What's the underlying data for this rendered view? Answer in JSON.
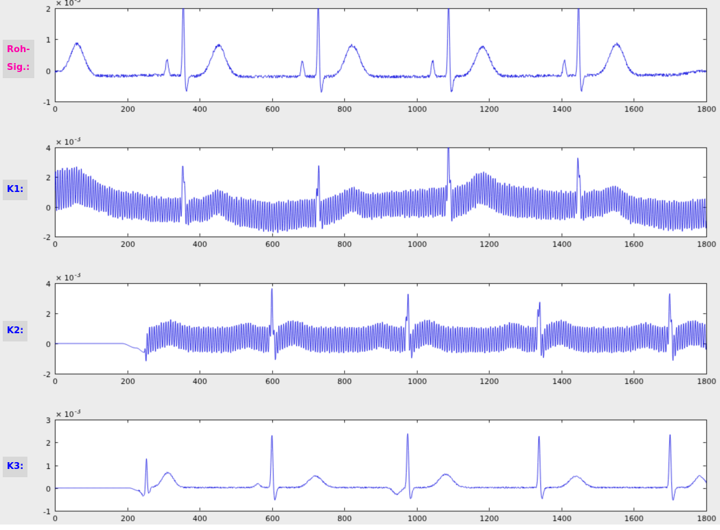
{
  "window": {
    "background": "#ececec",
    "bottom_strip_color": "#ffffff"
  },
  "figure": {
    "line_color": "#0000dd",
    "axes_background": "#ffffff",
    "axes_border": "#1a1a1a",
    "tick_label_color": "#000000",
    "label_box_background": "#d8d8d8"
  },
  "side_labels": [
    {
      "id": "roh-sig",
      "lines": [
        "Roh-",
        "Sig.:"
      ],
      "color": "#ff00aa",
      "background": "#d8d8d8"
    },
    {
      "id": "k1",
      "lines": [
        "K1:"
      ],
      "color": "#0000ff",
      "background": "#d8d8d8"
    },
    {
      "id": "k2",
      "lines": [
        "K2:"
      ],
      "color": "#0000ff",
      "background": "#d8d8d8"
    },
    {
      "id": "k3",
      "lines": [
        "K3:"
      ],
      "color": "#0000ff",
      "background": "#d8d8d8"
    }
  ],
  "chart_data": [
    {
      "name": "roh-signal",
      "type": "line",
      "xlim": [
        0,
        1800
      ],
      "ylim_scaled": [
        -1,
        2
      ],
      "unit_multiplier": 0.001,
      "scale_label": {
        "base": "× 10",
        "exponent": "-3"
      },
      "xticks": [
        0,
        200,
        400,
        600,
        800,
        1000,
        1200,
        1400,
        1600,
        1800
      ],
      "yticks": [
        -1,
        0,
        1,
        2
      ],
      "signal_model": {
        "baseline": [
          [
            0,
            -0.05
          ],
          [
            150,
            -0.18
          ],
          [
            300,
            -0.15
          ],
          [
            430,
            -0.2
          ],
          [
            1000,
            -0.2
          ],
          [
            1700,
            -0.15
          ],
          [
            1800,
            -0.02
          ]
        ],
        "noise": 0.05,
        "bumps": [
          {
            "x": 62,
            "h": 0.95,
            "w": 26
          },
          {
            "x": 310,
            "h": 0.5,
            "w": 5
          },
          {
            "x": 452,
            "h": 1.0,
            "w": 28
          },
          {
            "x": 684,
            "h": 0.5,
            "w": 5
          },
          {
            "x": 822,
            "h": 1.0,
            "w": 28
          },
          {
            "x": 1044,
            "h": 0.5,
            "w": 5
          },
          {
            "x": 1182,
            "h": 0.95,
            "w": 28
          },
          {
            "x": 1408,
            "h": 0.5,
            "w": 5
          },
          {
            "x": 1552,
            "h": 1.0,
            "w": 28
          }
        ],
        "spikes": [
          {
            "x": 355,
            "h": 2.5,
            "w": 3.5,
            "u": -0.5
          },
          {
            "x": 728,
            "h": 2.45,
            "w": 3.5,
            "u": -0.5
          },
          {
            "x": 1088,
            "h": 2.5,
            "w": 3.5,
            "u": -0.5
          },
          {
            "x": 1447,
            "h": 2.5,
            "w": 3.5,
            "u": -0.5
          }
        ]
      }
    },
    {
      "name": "k1",
      "type": "line",
      "xlim": [
        0,
        1800
      ],
      "ylim_scaled": [
        -2,
        4
      ],
      "unit_multiplier": 0.001,
      "scale_label": {
        "base": "× 10",
        "exponent": "-3"
      },
      "xticks": [
        0,
        200,
        400,
        600,
        800,
        1000,
        1200,
        1400,
        1600,
        1800
      ],
      "yticks": [
        -2,
        0,
        2,
        4
      ],
      "signal_model": {
        "baseline": [
          [
            0,
            1.1
          ],
          [
            80,
            0.9
          ],
          [
            200,
            0.1
          ],
          [
            300,
            -0.2
          ],
          [
            400,
            -0.25
          ],
          [
            500,
            -0.35
          ],
          [
            600,
            -0.7
          ],
          [
            700,
            -0.45
          ],
          [
            800,
            -0.15
          ],
          [
            950,
            0.2
          ],
          [
            1100,
            0.35
          ],
          [
            1250,
            0.4
          ],
          [
            1400,
            0.1
          ],
          [
            1500,
            0.2
          ],
          [
            1600,
            -0.3
          ],
          [
            1720,
            -0.6
          ],
          [
            1800,
            -0.45
          ]
        ],
        "noise": 0.08,
        "osc": {
          "period": 6.5,
          "amplitude": [
            [
              0,
              1.4
            ],
            [
              150,
              0.95
            ],
            [
              350,
              0.8
            ],
            [
              600,
              1.0
            ],
            [
              900,
              0.85
            ],
            [
              1200,
              1.1
            ],
            [
              1500,
              0.9
            ],
            [
              1800,
              1.0
            ]
          ]
        },
        "bumps": [
          {
            "x": 60,
            "h": 0.5,
            "w": 30
          },
          {
            "x": 452,
            "h": 0.6,
            "w": 30
          },
          {
            "x": 822,
            "h": 0.6,
            "w": 30
          },
          {
            "x": 1182,
            "h": 0.9,
            "w": 38
          },
          {
            "x": 1552,
            "h": 0.6,
            "w": 30
          }
        ],
        "spikes": [
          {
            "x": 355,
            "h": 2.9,
            "w": 4,
            "u": -0.3
          },
          {
            "x": 728,
            "h": 2.6,
            "w": 4,
            "u": -0.3
          },
          {
            "x": 1088,
            "h": 3.8,
            "w": 4,
            "u": -0.3
          },
          {
            "x": 1447,
            "h": 3.0,
            "w": 4,
            "u": -0.3
          }
        ]
      }
    },
    {
      "name": "k2",
      "type": "line",
      "xlim": [
        0,
        1800
      ],
      "ylim_scaled": [
        -2,
        4
      ],
      "unit_multiplier": 0.001,
      "scale_label": {
        "base": "× 10",
        "exponent": "-3"
      },
      "xticks": [
        0,
        200,
        400,
        600,
        800,
        1000,
        1200,
        1400,
        1600,
        1800
      ],
      "yticks": [
        -2,
        0,
        2,
        4
      ],
      "signal_model": {
        "baseline": [
          [
            0,
            0
          ],
          [
            185,
            0
          ],
          [
            225,
            -0.3
          ],
          [
            248,
            -0.6
          ],
          [
            263,
            0.25
          ],
          [
            1800,
            0.25
          ]
        ],
        "noise": 0.05,
        "noise_start": 250,
        "osc": {
          "period": 6.5,
          "amplitude": [
            [
              0,
              0
            ],
            [
              246,
              0
            ],
            [
              254,
              0.85
            ],
            [
              1800,
              0.85
            ]
          ]
        },
        "bumps": [
          {
            "x": 320,
            "h": 0.45,
            "w": 35
          },
          {
            "x": 530,
            "h": 0.3,
            "w": 28
          },
          {
            "x": 660,
            "h": 0.45,
            "w": 35
          },
          {
            "x": 900,
            "h": 0.3,
            "w": 28
          },
          {
            "x": 1030,
            "h": 0.45,
            "w": 35
          },
          {
            "x": 1265,
            "h": 0.3,
            "w": 28
          },
          {
            "x": 1395,
            "h": 0.45,
            "w": 35
          },
          {
            "x": 1630,
            "h": 0.3,
            "w": 28
          },
          {
            "x": 1765,
            "h": 0.45,
            "w": 35
          }
        ],
        "spikes": [
          {
            "x": 600,
            "h": 2.7,
            "w": 4,
            "u": -0.6
          },
          {
            "x": 975,
            "h": 2.6,
            "w": 4,
            "u": -0.6
          },
          {
            "x": 1338,
            "h": 2.55,
            "w": 4,
            "u": -0.6
          },
          {
            "x": 1700,
            "h": 2.65,
            "w": 4,
            "u": -0.6
          }
        ]
      }
    },
    {
      "name": "k3",
      "type": "line",
      "xlim": [
        0,
        1800
      ],
      "ylim_scaled": [
        -1,
        3
      ],
      "unit_multiplier": 0.001,
      "scale_label": {
        "base": "× 10",
        "exponent": "-3"
      },
      "xticks": [
        0,
        200,
        400,
        600,
        800,
        1000,
        1200,
        1400,
        1600,
        1800
      ],
      "yticks": [
        -1,
        0,
        1,
        2,
        3
      ],
      "signal_model": {
        "baseline": [
          [
            0,
            0
          ],
          [
            205,
            0
          ],
          [
            232,
            -0.12
          ],
          [
            246,
            -0.35
          ],
          [
            262,
            0.02
          ],
          [
            1800,
            0.02
          ]
        ],
        "noise": 0.035,
        "noise_start": 232,
        "bumps": [
          {
            "x": 312,
            "h": 0.65,
            "w": 22
          },
          {
            "x": 560,
            "h": 0.15,
            "w": 10
          },
          {
            "x": 720,
            "h": 0.5,
            "w": 26
          },
          {
            "x": 945,
            "h": -0.3,
            "w": 14
          },
          {
            "x": 1080,
            "h": 0.58,
            "w": 26
          },
          {
            "x": 1440,
            "h": 0.5,
            "w": 26
          },
          {
            "x": 1782,
            "h": 0.5,
            "w": 20
          }
        ],
        "spikes": [
          {
            "x": 253,
            "h": 1.5,
            "w": 3,
            "u": -0.25
          },
          {
            "x": 600,
            "h": 2.4,
            "w": 3.5,
            "u": -0.55
          },
          {
            "x": 975,
            "h": 2.45,
            "w": 3.5,
            "u": -0.5
          },
          {
            "x": 1338,
            "h": 2.35,
            "w": 3.5,
            "u": -0.5
          },
          {
            "x": 1700,
            "h": 2.4,
            "w": 3.5,
            "u": -0.55
          }
        ]
      }
    }
  ]
}
